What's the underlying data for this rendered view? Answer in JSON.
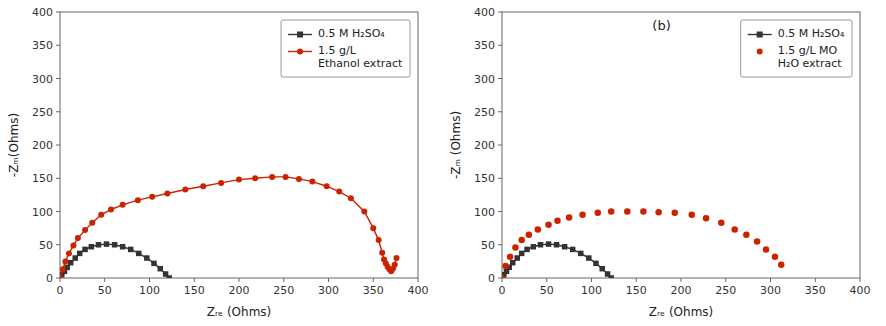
{
  "chart_data": [
    {
      "type": "line",
      "xlabel": "Zᵣₑ (Ohms)",
      "ylabel": "-Zₘ(Ohms)",
      "xlim": [
        0,
        400
      ],
      "ylim": [
        0,
        400
      ],
      "xticks": [
        0,
        50,
        100,
        150,
        200,
        250,
        300,
        350,
        400
      ],
      "yticks": [
        0,
        50,
        100,
        150,
        200,
        250,
        300,
        350,
        400
      ],
      "grid": false,
      "legend": "upper right",
      "series": [
        {
          "name": "0.5 M H₂SO₄",
          "color": "#333333",
          "marker": "square",
          "line_style": "solid",
          "x": [
            0,
            2,
            5,
            8,
            12,
            17,
            22,
            28,
            35,
            43,
            52,
            61,
            70,
            79,
            88,
            97,
            105,
            112,
            118,
            122
          ],
          "values": [
            0,
            5,
            10,
            16,
            23,
            30,
            37,
            43,
            47,
            50,
            51,
            50,
            47,
            43,
            37,
            30,
            22,
            14,
            6,
            0
          ]
        },
        {
          "name": "1.5 g/L\nEthanol extract",
          "color": "#cc2200",
          "marker": "circle",
          "line_style": "solid",
          "x": [
            0,
            3,
            6,
            10,
            15,
            20,
            28,
            36,
            46,
            57,
            70,
            87,
            103,
            120,
            140,
            160,
            180,
            200,
            218,
            237,
            252,
            267,
            282,
            298,
            312,
            325,
            340,
            350,
            356,
            360,
            362,
            364,
            366,
            368,
            370,
            372,
            374,
            376
          ],
          "values": [
            0,
            13,
            25,
            37,
            49,
            60,
            72,
            83,
            95,
            103,
            110,
            117,
            122,
            127,
            133,
            138,
            143,
            148,
            150,
            152,
            152,
            149,
            145,
            138,
            130,
            120,
            100,
            75,
            57,
            38,
            28,
            22,
            17,
            13,
            10,
            14,
            20,
            30
          ]
        }
      ]
    },
    {
      "type": "line",
      "title": "(b)",
      "xlabel": "Zᵣₑ (Ohms)",
      "ylabel": "-Zₘ (Ohms)",
      "xlim": [
        0,
        400
      ],
      "ylim": [
        0,
        400
      ],
      "xticks": [
        0,
        50,
        100,
        150,
        200,
        250,
        300,
        350,
        400
      ],
      "yticks": [
        0,
        50,
        100,
        150,
        200,
        250,
        300,
        350,
        400
      ],
      "grid": false,
      "legend": "upper right",
      "series": [
        {
          "name": "0.5 M H₂SO₄",
          "color": "#333333",
          "marker": "square",
          "line_style": "solid",
          "x": [
            0,
            2,
            5,
            8,
            12,
            17,
            22,
            28,
            35,
            43,
            52,
            61,
            70,
            79,
            88,
            97,
            105,
            112,
            118,
            122
          ],
          "values": [
            0,
            5,
            10,
            16,
            23,
            30,
            37,
            43,
            47,
            50,
            51,
            50,
            47,
            43,
            37,
            30,
            22,
            14,
            6,
            0
          ]
        },
        {
          "name": "1.5 g/L MO\nH₂O extract",
          "color": "#cc2200",
          "marker": "circle",
          "type": "scatter",
          "line_style": "none",
          "x": [
            0,
            4,
            9,
            15,
            22,
            30,
            40,
            52,
            62,
            75,
            90,
            107,
            122,
            140,
            158,
            175,
            193,
            212,
            228,
            245,
            260,
            273,
            285,
            295,
            305,
            312
          ],
          "values": [
            0,
            18,
            32,
            46,
            57,
            65,
            73,
            80,
            86,
            91,
            95,
            98,
            100,
            100,
            100,
            99,
            98,
            95,
            90,
            83,
            73,
            65,
            55,
            43,
            32,
            20
          ]
        }
      ]
    }
  ]
}
